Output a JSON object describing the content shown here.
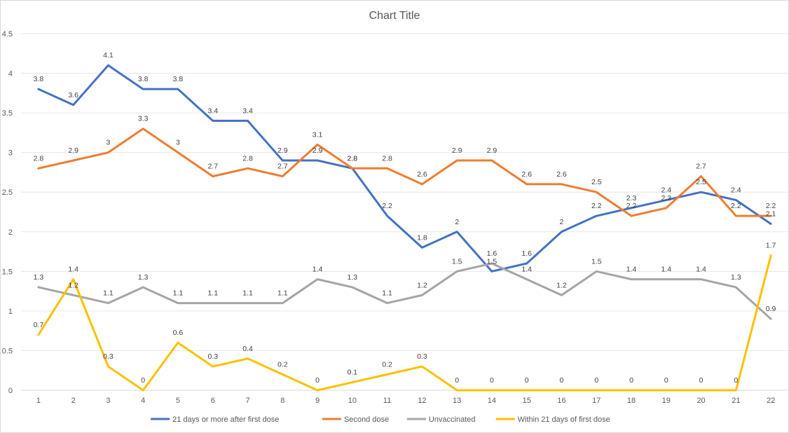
{
  "chart_data": {
    "type": "line",
    "title": "Chart Title",
    "xlabel": "",
    "ylabel": "",
    "ylim": [
      0,
      4.5
    ],
    "yticks": [
      "0",
      "0.5",
      "1",
      "1.5",
      "2",
      "2.5",
      "3",
      "3.5",
      "4",
      "4.5"
    ],
    "categories": [
      "1",
      "2",
      "3",
      "4",
      "5",
      "6",
      "7",
      "8",
      "9",
      "10",
      "11",
      "12",
      "13",
      "14",
      "15",
      "16",
      "17",
      "18",
      "19",
      "20",
      "21",
      "22"
    ],
    "grid": true,
    "legend_position": "bottom",
    "series": [
      {
        "name": "21 days or more after first dose",
        "color": "#4472C4",
        "values": [
          3.8,
          3.6,
          4.1,
          3.8,
          3.8,
          3.4,
          3.4,
          2.9,
          2.9,
          2.8,
          2.2,
          1.8,
          2,
          1.5,
          1.6,
          2,
          2.2,
          2.3,
          2.4,
          2.5,
          2.4,
          2.1
        ]
      },
      {
        "name": "Second dose",
        "color": "#ED7D31",
        "values": [
          2.8,
          2.9,
          3,
          3.3,
          3,
          2.7,
          2.8,
          2.7,
          3.1,
          2.8,
          2.8,
          2.6,
          2.9,
          2.9,
          2.6,
          2.6,
          2.5,
          2.2,
          2.3,
          2.7,
          2.2,
          2.2
        ]
      },
      {
        "name": "Unvaccinated",
        "color": "#A5A5A5",
        "values": [
          1.3,
          1.2,
          1.1,
          1.3,
          1.1,
          1.1,
          1.1,
          1.1,
          1.4,
          1.3,
          1.1,
          1.2,
          1.5,
          1.6,
          1.4,
          1.2,
          1.5,
          1.4,
          1.4,
          1.4,
          1.3,
          0.9
        ]
      },
      {
        "name": "Within 21 days of first dose",
        "color": "#FFC000",
        "values": [
          0.7,
          1.4,
          0.3,
          0,
          0.6,
          0.3,
          0.4,
          0.2,
          0,
          0.1,
          0.2,
          0.3,
          0,
          0,
          0,
          0,
          0,
          0,
          0,
          0,
          0,
          1.7
        ]
      }
    ]
  }
}
